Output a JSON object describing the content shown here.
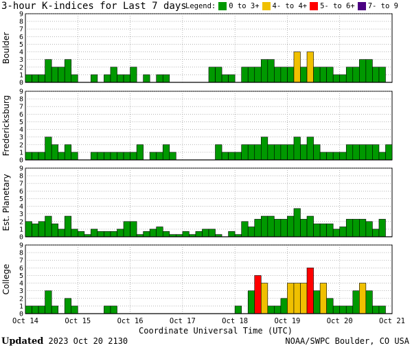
{
  "title": "3-hour K-indices for Last 7 days",
  "legend": {
    "label": "Legend:",
    "items": [
      {
        "label": "0 to 3+",
        "color": "#009900"
      },
      {
        "label": "4- to 4+",
        "color": "#f0c000"
      },
      {
        "label": "5- to 6+",
        "color": "#ff0000"
      },
      {
        "label": "7- to 9",
        "color": "#4b0082"
      }
    ]
  },
  "footer": {
    "updated_label": "Updated",
    "updated_value": "2023 Oct 20 2130",
    "source": "NOAA/SWPC Boulder, CO USA"
  },
  "chart_data": {
    "type": "bar",
    "xlabel": "Coordinate Universal Time (UTC)",
    "x_ticks": [
      "Oct 14",
      "Oct 15",
      "Oct 16",
      "Oct 17",
      "Oct 18",
      "Oct 19",
      "Oct 20",
      "Oct 21"
    ],
    "ylim": [
      0,
      9
    ],
    "y_ticks": [
      0,
      1,
      2,
      3,
      4,
      5,
      6,
      7,
      8,
      9
    ],
    "bars_per_day": 8,
    "grid": true,
    "color_bins": [
      {
        "range": "0 to 3+",
        "max": 3.9,
        "color": "#009900"
      },
      {
        "range": "4- to 4+",
        "max": 4.9,
        "color": "#f0c000"
      },
      {
        "range": "5- to 6+",
        "max": 6.9,
        "color": "#ff0000"
      },
      {
        "range": "7- to 9",
        "max": 9,
        "color": "#4b0082"
      }
    ],
    "series": [
      {
        "name": "Boulder",
        "values": [
          1,
          1,
          1,
          3,
          2,
          2,
          3,
          1,
          0,
          0,
          1,
          0,
          1,
          2,
          1,
          1,
          2,
          0,
          1,
          0,
          1,
          1,
          0,
          0,
          0,
          0,
          0,
          0,
          2,
          2,
          1,
          1,
          0,
          2,
          2,
          2,
          3,
          3,
          2,
          2,
          2,
          4,
          2,
          4,
          2,
          2,
          2,
          1,
          1,
          2,
          2,
          3,
          3,
          2,
          2,
          0
        ]
      },
      {
        "name": "Fredericksburg",
        "values": [
          1,
          1,
          1,
          3,
          2,
          1,
          2,
          1,
          0,
          0,
          1,
          1,
          1,
          1,
          1,
          1,
          1,
          2,
          0,
          1,
          1,
          2,
          1,
          0,
          0,
          0,
          0,
          0,
          0,
          2,
          1,
          1,
          1,
          2,
          2,
          2,
          3,
          2,
          2,
          2,
          2,
          3,
          2,
          3,
          2,
          1,
          1,
          1,
          1,
          2,
          2,
          2,
          2,
          2,
          1,
          2
        ]
      },
      {
        "name": "Est. Planetary",
        "values": [
          2,
          1.7,
          2,
          2.7,
          1.7,
          1,
          2.7,
          1,
          0.7,
          0.3,
          1,
          0.7,
          0.7,
          0.7,
          1,
          2,
          2,
          0.3,
          0.7,
          1,
          1.3,
          0.7,
          0.3,
          0.3,
          0.7,
          0.3,
          0.7,
          1,
          1,
          0.3,
          0,
          0.7,
          0.3,
          2,
          1.3,
          2.3,
          2.7,
          2.7,
          2.3,
          2.3,
          2.7,
          3.7,
          2.3,
          2.7,
          1.7,
          1.7,
          1.7,
          1,
          1.3,
          2.3,
          2.3,
          2.3,
          2,
          1,
          2.3,
          0
        ]
      },
      {
        "name": "College",
        "values": [
          1,
          1,
          1,
          3,
          1,
          0,
          2,
          1,
          0,
          0,
          0,
          0,
          1,
          1,
          0,
          0,
          0,
          0,
          0,
          0,
          0,
          0,
          0,
          0,
          0,
          0,
          0,
          0,
          0,
          0,
          0,
          0,
          1,
          0,
          3,
          5,
          4,
          1,
          1,
          2,
          4,
          4,
          4,
          6,
          3,
          4,
          2,
          1,
          1,
          1,
          3,
          4,
          3,
          1,
          1,
          0
        ]
      }
    ]
  }
}
